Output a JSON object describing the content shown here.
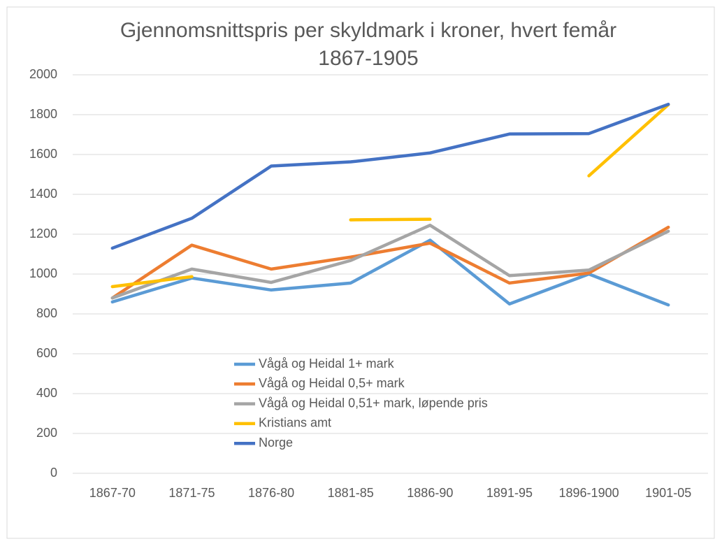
{
  "chart_data": {
    "type": "line",
    "title": "Gjennomsnittspris per skyldmark i kroner, hvert femår 1867-1905",
    "categories": [
      "1867-70",
      "1871-75",
      "1876-80",
      "1881-85",
      "1886-90",
      "1891-95",
      "1896-1900",
      "1901-05"
    ],
    "series": [
      {
        "name": "Vågå og Heidal 1+ mark",
        "color": "#5b9bd5",
        "values": [
          860,
          980,
          920,
          955,
          1170,
          850,
          1000,
          845
        ]
      },
      {
        "name": "Vågå og Heidal 0,5+ mark",
        "color": "#ed7d31",
        "values": [
          880,
          1145,
          1025,
          1085,
          1155,
          955,
          1005,
          1235
        ]
      },
      {
        "name": "Vågå og Heidal 0,51+ mark, løpende pris",
        "color": "#a5a5a5",
        "values": [
          880,
          1025,
          958,
          1068,
          1245,
          992,
          1020,
          1215
        ]
      },
      {
        "name": "Kristians amt",
        "color": "#ffc000",
        "values": [
          937,
          987,
          null,
          1272,
          1275,
          null,
          1493,
          1850
        ]
      },
      {
        "name": "Norge",
        "color": "#4472c4",
        "values": [
          1130,
          1280,
          1542,
          1563,
          1608,
          1703,
          1705,
          1852
        ]
      }
    ],
    "ylim": [
      0,
      2000
    ],
    "yticks": [
      0,
      200,
      400,
      600,
      800,
      1000,
      1200,
      1400,
      1600,
      1800,
      2000
    ],
    "grid": true,
    "legend_position": "center"
  }
}
